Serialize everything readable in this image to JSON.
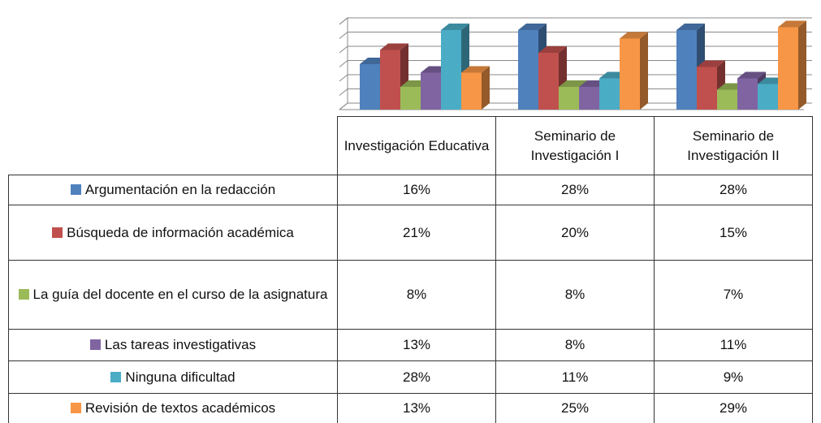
{
  "chart_data": {
    "type": "bar",
    "categories": [
      "Investigación Educativa",
      "Seminario de Investigación I",
      "Seminario de Investigación II"
    ],
    "series": [
      {
        "name": "Argumentación en la redacción",
        "color": "#4F81BD",
        "values": [
          16,
          28,
          28
        ],
        "value_labels": [
          "16%",
          "28%",
          "28%"
        ]
      },
      {
        "name": "Búsqueda de información académica",
        "color": "#C0504D",
        "values": [
          21,
          20,
          15
        ],
        "value_labels": [
          "21%",
          "20%",
          "15%"
        ]
      },
      {
        "name": "La guía del docente en el curso de la asignatura",
        "color": "#9BBB59",
        "values": [
          8,
          8,
          7
        ],
        "value_labels": [
          "8%",
          "8%",
          "7%"
        ]
      },
      {
        "name": "Las tareas investigativas",
        "color": "#8064A2",
        "values": [
          13,
          8,
          11
        ],
        "value_labels": [
          "13%",
          "8%",
          "11%"
        ]
      },
      {
        "name": "Ninguna dificultad",
        "color": "#4BACC6",
        "values": [
          28,
          11,
          9
        ],
        "value_labels": [
          "28%",
          "11%",
          "9%"
        ]
      },
      {
        "name": "Revisión de textos académicos",
        "color": "#F79646",
        "values": [
          13,
          25,
          29
        ],
        "value_labels": [
          "13%",
          "25%",
          "29%"
        ]
      }
    ],
    "ylim": [
      0,
      30
    ],
    "yticks": [
      0,
      5,
      10,
      15,
      20,
      25,
      30
    ],
    "grid": true
  }
}
